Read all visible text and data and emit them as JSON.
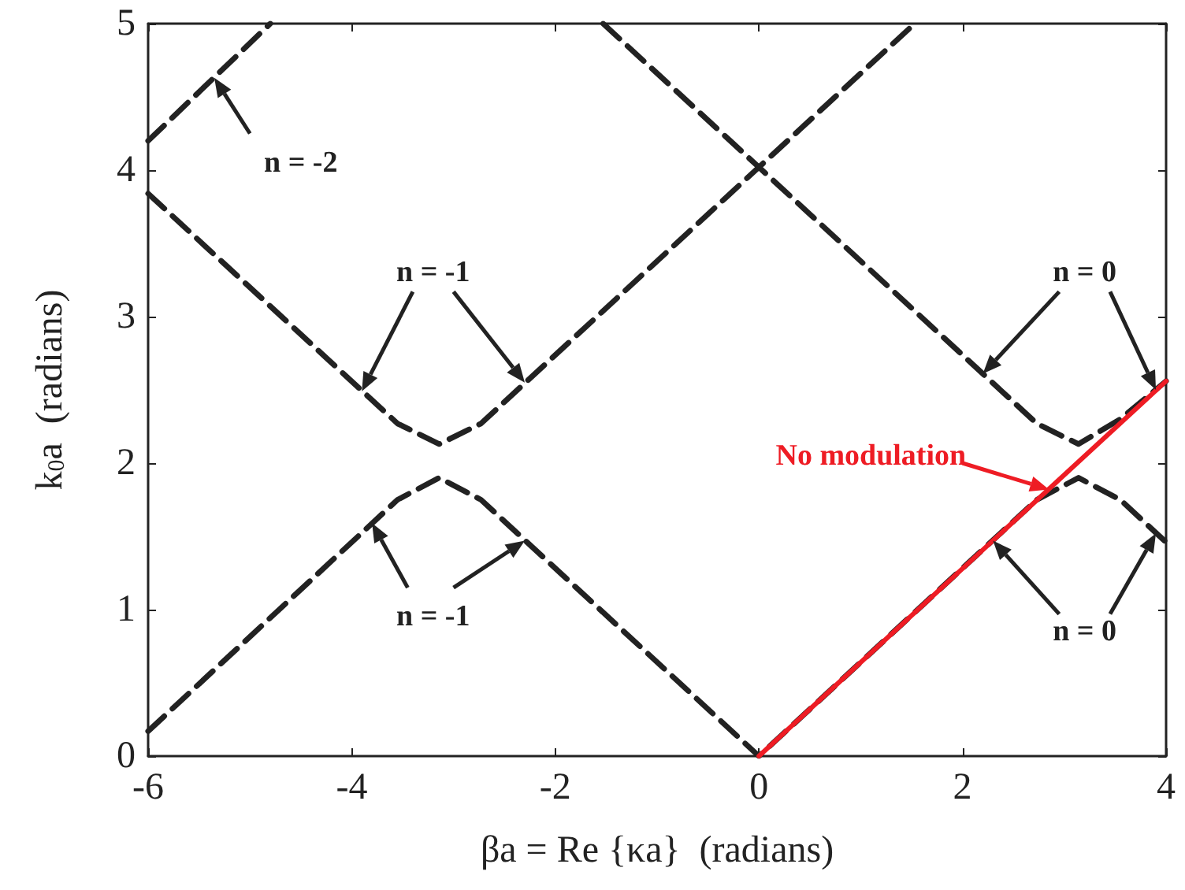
{
  "chart_data": {
    "type": "line",
    "xlabel": "βa = Re {κa}  (radians)",
    "ylabel": "k$_{0}$a  (radians)",
    "xlim": [
      -6,
      4
    ],
    "xticks": [
      -6,
      -4,
      -2,
      0,
      2,
      4
    ],
    "ylim": [
      0,
      5
    ],
    "yticks": [
      0,
      1,
      2,
      3,
      4,
      5
    ],
    "grid": false,
    "marker": "none",
    "series": [
      {
        "color": "#222222",
        "line_style": "dashed",
        "x": [
          -6,
          -3.55,
          -3.14,
          -2.73,
          0,
          2.73,
          3.14,
          3.55,
          4
        ],
        "values": [
          0.17,
          1.75,
          1.9,
          1.75,
          0,
          1.75,
          1.9,
          1.75,
          1.46
        ]
      },
      {
        "color": "#222222",
        "line_style": "dashed",
        "x": [
          -6,
          -3.55,
          -3.14,
          -2.73,
          0,
          1.53
        ],
        "values": [
          3.84,
          2.27,
          2.13,
          2.27,
          4.02,
          5
        ]
      },
      {
        "color": "#222222",
        "line_style": "dashed",
        "x": [
          -1.53,
          0,
          2.73,
          3.14,
          3.55,
          4
        ],
        "values": [
          5,
          4.02,
          2.27,
          2.13,
          2.3,
          2.56
        ]
      },
      {
        "color": "#222222",
        "line_style": "dashed",
        "x": [
          -6,
          -4.8
        ],
        "values": [
          4.2,
          5
        ]
      },
      {
        "color": "#ee1c24",
        "line_style": "solid",
        "x": [
          0,
          4
        ],
        "values": [
          0,
          2.56
        ]
      }
    ],
    "annotations": [
      {
        "text": "n = -2",
        "x": -5.35,
        "y": 4.63
      },
      "n = -1",
      "n = 0",
      {
        "text": "n = -1",
        "x": -3.8,
        "y": 1.59
      },
      "n = 0",
      {
        "text": "No modulation",
        "x": 2.85,
        "y": 1.82
      }
    ]
  }
}
